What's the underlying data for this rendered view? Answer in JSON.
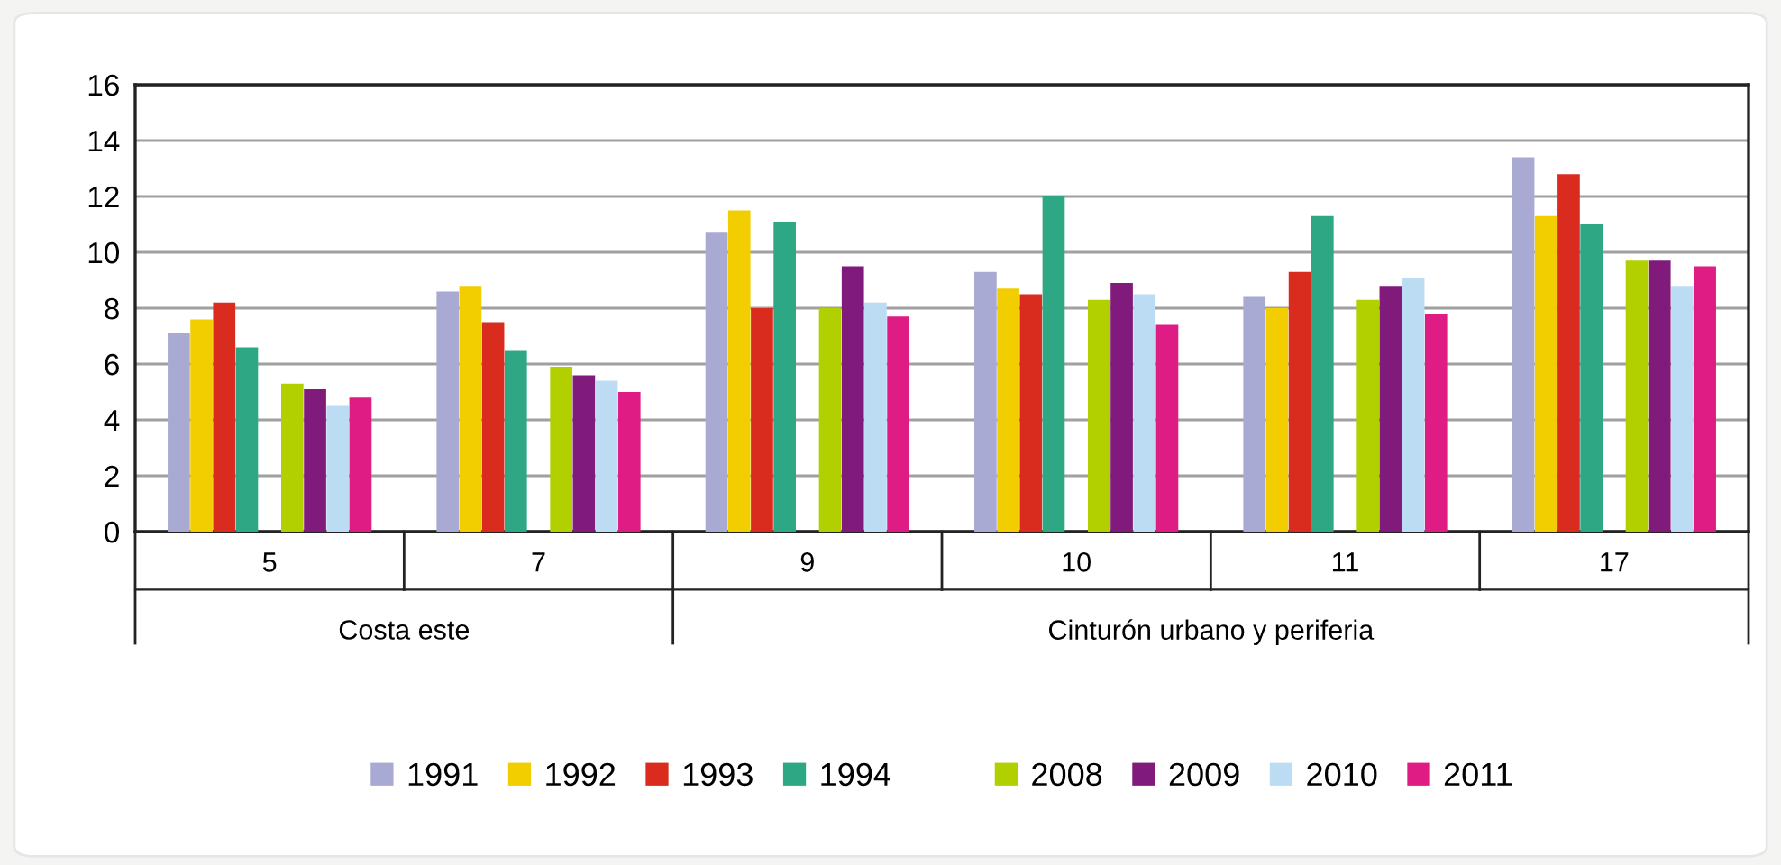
{
  "chart_data": {
    "type": "bar",
    "categories": [
      "5",
      "7",
      "9",
      "10",
      "11",
      "17"
    ],
    "series": [
      {
        "name": "1991",
        "color": "#a9aad4",
        "values": [
          7.1,
          8.6,
          10.7,
          9.3,
          8.4,
          13.4
        ]
      },
      {
        "name": "1992",
        "color": "#f2cd00",
        "values": [
          7.6,
          8.8,
          11.5,
          8.7,
          8.0,
          11.3
        ]
      },
      {
        "name": "1993",
        "color": "#d92b1e",
        "values": [
          8.2,
          7.5,
          8.0,
          8.5,
          9.3,
          12.8
        ]
      },
      {
        "name": "1994",
        "color": "#2ea784",
        "values": [
          6.6,
          6.5,
          11.1,
          12.0,
          11.3,
          11.0
        ]
      },
      {
        "name": "2008",
        "color": "#b2d000",
        "values": [
          5.3,
          5.9,
          8.0,
          8.3,
          8.3,
          9.7
        ]
      },
      {
        "name": "2009",
        "color": "#801b7c",
        "values": [
          5.1,
          5.6,
          9.5,
          8.9,
          8.8,
          9.7
        ]
      },
      {
        "name": "2010",
        "color": "#bcdcf4",
        "values": [
          4.5,
          5.4,
          8.2,
          8.5,
          9.1,
          8.8
        ]
      },
      {
        "name": "2011",
        "color": "#df1b84",
        "values": [
          4.8,
          5.0,
          7.7,
          7.4,
          7.8,
          9.5
        ]
      }
    ],
    "annotations": [
      "Costa este",
      "Cinturón urbano y periferia"
    ],
    "ylim": [
      0,
      16
    ],
    "yticks": [
      0,
      2,
      4,
      6,
      8,
      10,
      12,
      14,
      16
    ],
    "grid": "y",
    "legend": "bottom"
  }
}
